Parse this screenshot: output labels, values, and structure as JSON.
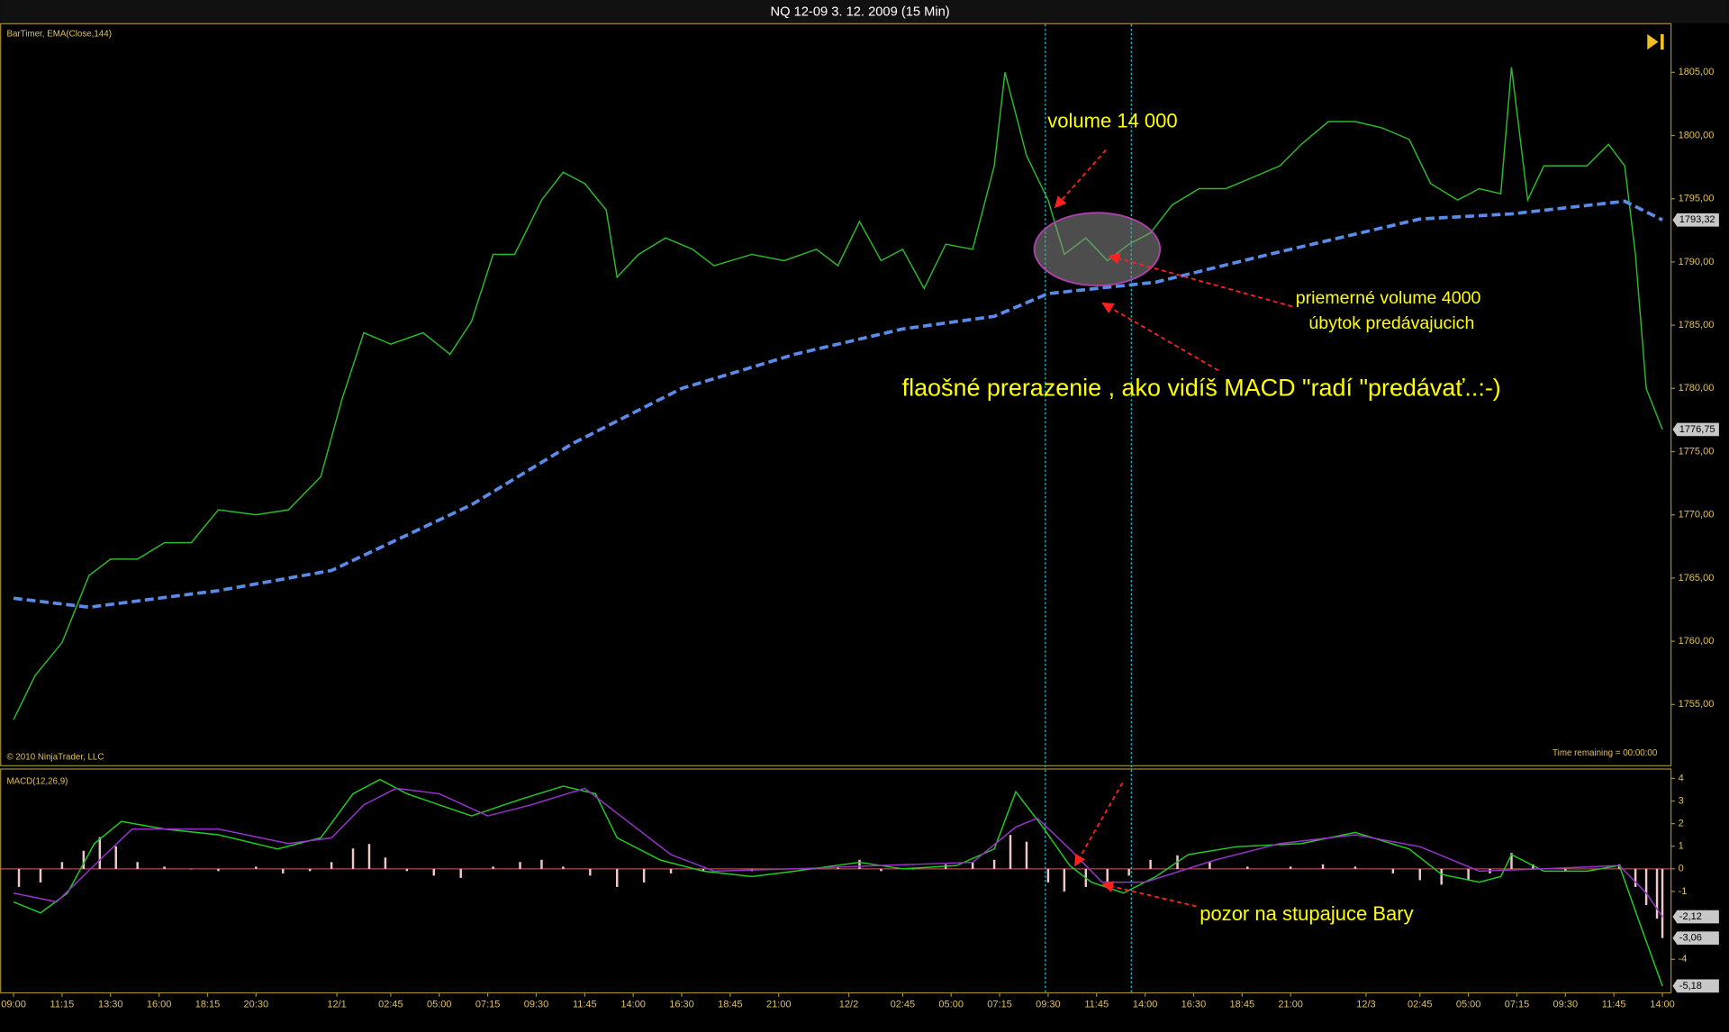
{
  "title": "NQ 12-09  3. 12. 2009 (15 Min)",
  "annotations": [
    "volume 14 000",
    "priemerné volume 4000",
    "úbytok predávajucich",
    "flaošné prerazenie , ako vidíš MACD \"radí \"predávať..:-)",
    "pozor na stupajuce Bary"
  ],
  "chart_data": [
    {
      "type": "line",
      "indicator_label": "BarTimer, EMA(Close,144)",
      "copyright": "© 2010 NinjaTrader, LLC",
      "time_remaining": "Time remaining = 00:00:00",
      "xlim": [
        -2.5,
        307.5
      ],
      "ylim": [
        1750.2,
        1808.8
      ],
      "yticks": [
        {
          "value": 1805,
          "label": "1805,00"
        },
        {
          "value": 1800,
          "label": "1800,00"
        },
        {
          "value": 1795,
          "label": "1795,00"
        },
        {
          "value": 1790,
          "label": "1790,00"
        },
        {
          "value": 1785,
          "label": "1785,00"
        },
        {
          "value": 1780,
          "label": "1780,00"
        },
        {
          "value": 1775,
          "label": "1775,00"
        },
        {
          "value": 1770,
          "label": "1770,00"
        },
        {
          "value": 1765,
          "label": "1765,00"
        },
        {
          "value": 1760,
          "label": "1760,00"
        },
        {
          "value": 1755,
          "label": "1755,00"
        }
      ],
      "series": [
        {
          "color": "#2db82d",
          "x": [
            0,
            4,
            9,
            14,
            18,
            23,
            28,
            33,
            38,
            45,
            51,
            57,
            61,
            65,
            70,
            76,
            81,
            85,
            89,
            93,
            98,
            102,
            106,
            110,
            112,
            116,
            121,
            126,
            130,
            137,
            143,
            149,
            153,
            157,
            161,
            165,
            169,
            173,
            178,
            182,
            184,
            188,
            192,
            195,
            199,
            203,
            207,
            211,
            215,
            220,
            225,
            230,
            235,
            239,
            244,
            249,
            254,
            259,
            263,
            268,
            272,
            276,
            278,
            281,
            284,
            288,
            292,
            296,
            299,
            301,
            303,
            306
          ],
          "values": [
            1753.8,
            1757.3,
            1759.9,
            1765.2,
            1766.5,
            1766.5,
            1767.8,
            1767.8,
            1770.4,
            1770.0,
            1770.4,
            1773.0,
            1779.2,
            1784.4,
            1783.5,
            1784.4,
            1782.7,
            1785.3,
            1790.6,
            1790.6,
            1794.9,
            1797.1,
            1796.2,
            1794.1,
            1788.8,
            1790.6,
            1791.9,
            1791.0,
            1789.7,
            1790.6,
            1790.1,
            1791.0,
            1789.7,
            1793.2,
            1790.1,
            1791.0,
            1787.9,
            1791.4,
            1791.0,
            1797.6,
            1805.0,
            1798.4,
            1794.9,
            1790.6,
            1791.9,
            1790.1,
            1791.4,
            1792.3,
            1794.5,
            1795.8,
            1795.8,
            1796.7,
            1797.6,
            1799.3,
            1801.1,
            1801.1,
            1800.6,
            1799.7,
            1796.2,
            1794.9,
            1795.8,
            1795.4,
            1805.4,
            1794.9,
            1797.6,
            1797.6,
            1797.6,
            1799.3,
            1797.6,
            1790.6,
            1780.0,
            1776.75
          ]
        },
        {
          "color": "#5b8be8",
          "dashed": true,
          "x": [
            0,
            14,
            38,
            59,
            85,
            104,
            124,
            145,
            165,
            182,
            192,
            212,
            233,
            261,
            278,
            299,
            306
          ],
          "values": [
            1763.4,
            1762.7,
            1764.0,
            1765.6,
            1770.8,
            1775.7,
            1780.0,
            1782.7,
            1784.7,
            1785.7,
            1787.5,
            1788.4,
            1790.6,
            1793.4,
            1793.8,
            1794.8,
            1793.32
          ]
        }
      ],
      "value_tags": [
        {
          "value": 1793.32,
          "label": "1793,32"
        },
        {
          "value": 1776.75,
          "label": "1776,75"
        }
      ]
    },
    {
      "type": "macd",
      "indicator_label": "MACD(12,26,9)",
      "xlim": [
        -2.5,
        307.5
      ],
      "ylim": [
        -5.46,
        4.39
      ],
      "yticks": [
        4,
        3,
        2,
        1,
        0,
        -1,
        -4
      ],
      "xticks": [
        {
          "value": 0,
          "label": "09:00"
        },
        {
          "value": 9,
          "label": "11:15"
        },
        {
          "value": 18,
          "label": "13:30"
        },
        {
          "value": 27,
          "label": "16:00"
        },
        {
          "value": 36,
          "label": "18:15"
        },
        {
          "value": 45,
          "label": "20:30"
        },
        {
          "value": 60,
          "label": "12/1"
        },
        {
          "value": 70,
          "label": "02:45"
        },
        {
          "value": 79,
          "label": "05:00"
        },
        {
          "value": 88,
          "label": "07:15"
        },
        {
          "value": 97,
          "label": "09:30"
        },
        {
          "value": 106,
          "label": "11:45"
        },
        {
          "value": 115,
          "label": "14:00"
        },
        {
          "value": 124,
          "label": "16:30"
        },
        {
          "value": 133,
          "label": "18:45"
        },
        {
          "value": 142,
          "label": "21:00"
        },
        {
          "value": 155,
          "label": "12/2"
        },
        {
          "value": 165,
          "label": "02:45"
        },
        {
          "value": 174,
          "label": "05:00"
        },
        {
          "value": 183,
          "label": "07:15"
        },
        {
          "value": 192,
          "label": "09:30"
        },
        {
          "value": 201,
          "label": "11:45"
        },
        {
          "value": 210,
          "label": "14:00"
        },
        {
          "value": 219,
          "label": "16:30"
        },
        {
          "value": 228,
          "label": "18:45"
        },
        {
          "value": 237,
          "label": "21:00"
        },
        {
          "value": 251,
          "label": "12/3"
        },
        {
          "value": 261,
          "label": "02:45"
        },
        {
          "value": 270,
          "label": "05:00"
        },
        {
          "value": 279,
          "label": "07:15"
        },
        {
          "value": 288,
          "label": "09:30"
        },
        {
          "value": 297,
          "label": "11:45"
        },
        {
          "value": 306,
          "label": "14:00"
        }
      ],
      "series": [
        {
          "color": "#22cc22",
          "x": [
            0,
            5,
            10,
            15,
            20,
            28,
            38,
            49,
            57,
            63,
            68,
            73,
            79,
            85,
            94,
            102,
            108,
            112,
            120,
            128,
            137,
            145,
            157,
            165,
            175,
            182,
            186,
            191,
            196,
            200,
            206,
            212,
            218,
            227,
            239,
            249,
            259,
            265,
            272,
            276,
            278,
            284,
            292,
            298,
            302,
            306
          ],
          "values": [
            -1.46,
            -1.95,
            -1.07,
            1.12,
            2.1,
            1.76,
            1.51,
            0.88,
            1.37,
            3.32,
            3.95,
            3.32,
            2.83,
            2.34,
            3.07,
            3.66,
            3.32,
            1.37,
            0.39,
            -0.1,
            -0.34,
            -0.1,
            0.29,
            0,
            0.15,
            0.88,
            3.41,
            1.85,
            0.15,
            -0.59,
            -1.07,
            -0.34,
            0.63,
            0.98,
            1.12,
            1.61,
            0.88,
            -0.24,
            -0.59,
            -0.34,
            0.63,
            -0.1,
            -0.1,
            0.15,
            -2.54,
            -5.18
          ]
        },
        {
          "color": "#9933cc",
          "x": [
            0,
            8,
            16,
            22,
            38,
            51,
            59,
            65,
            71,
            79,
            88,
            96,
            106,
            114,
            122,
            130,
            145,
            161,
            178,
            186,
            190,
            196,
            202,
            210,
            223,
            235,
            249,
            261,
            272,
            284,
            298,
            303,
            306
          ],
          "values": [
            -1.07,
            -1.46,
            0.39,
            1.76,
            1.76,
            1.12,
            1.37,
            2.83,
            3.56,
            3.32,
            2.34,
            2.83,
            3.56,
            2.1,
            0.63,
            -0.1,
            0,
            0.15,
            0.29,
            1.85,
            2.24,
            0.88,
            -0.59,
            -0.59,
            0.39,
            1.12,
            1.51,
            0.98,
            -0.1,
            0,
            0.15,
            -1.07,
            -2.12
          ]
        }
      ],
      "histogram": {
        "color": "#f0c8c8",
        "x": [
          1,
          5,
          9,
          13,
          16,
          19,
          23,
          28,
          33,
          38,
          45,
          50,
          55,
          59,
          63,
          66,
          69,
          73,
          78,
          83,
          89,
          94,
          98,
          102,
          107,
          112,
          117,
          122,
          128,
          137,
          145,
          153,
          157,
          161,
          167,
          173,
          178,
          182,
          185,
          188,
          192,
          195,
          199,
          203,
          207,
          211,
          216,
          222,
          229,
          237,
          243,
          249,
          256,
          261,
          265,
          270,
          274,
          278,
          282,
          288,
          294,
          298,
          301,
          303,
          305,
          306
        ],
        "values": [
          -0.8,
          -0.6,
          0.3,
          0.8,
          1.4,
          1.0,
          0.3,
          0.1,
          0,
          -0.1,
          0.1,
          -0.2,
          -0.1,
          0.3,
          0.9,
          1.1,
          0.5,
          -0.1,
          -0.3,
          -0.4,
          0.1,
          0.3,
          0.4,
          0.1,
          -0.3,
          -0.8,
          -0.6,
          -0.2,
          -0.1,
          -0.1,
          0,
          0.1,
          0.4,
          -0.1,
          0,
          0.2,
          0.3,
          0.4,
          1.5,
          1.2,
          -0.6,
          -1.0,
          -0.8,
          -0.6,
          -0.3,
          0.4,
          0.6,
          0.3,
          0.1,
          0.1,
          0.2,
          0.1,
          -0.2,
          -0.5,
          -0.7,
          -0.5,
          -0.2,
          0.7,
          0.2,
          -0.1,
          0,
          0.2,
          -0.8,
          -1.6,
          -2.2,
          -3.06
        ]
      },
      "value_tags": [
        {
          "value": -2.12,
          "label": "-2,12"
        },
        {
          "value": -3.06,
          "label": "-3,06"
        },
        {
          "value": -5.18,
          "label": "-5,18"
        }
      ]
    }
  ]
}
